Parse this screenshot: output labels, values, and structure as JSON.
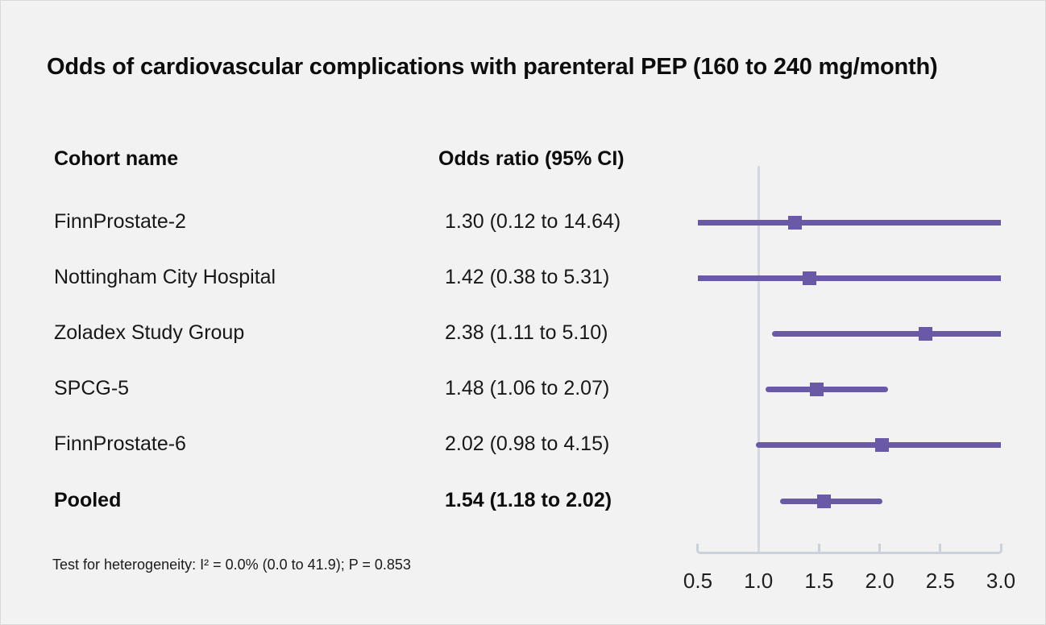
{
  "title": "Odds of cardiovascular complications with parenteral PEP (160 to 240 mg/month)",
  "table": {
    "col1_header": "Cohort name",
    "col2_header": "Odds ratio (95% CI)",
    "rows": [
      {
        "cohort": "FinnProstate-2",
        "odds_ratio": "1.30 (0.12 to 14.64)",
        "bold": false
      },
      {
        "cohort": "Nottingham City Hospital",
        "odds_ratio": "1.42 (0.38 to 5.31)",
        "bold": false
      },
      {
        "cohort": "Zoladex Study Group",
        "odds_ratio": "2.38 (1.11 to 5.10)",
        "bold": false
      },
      {
        "cohort": "SPCG-5",
        "odds_ratio": "1.48 (1.06 to 2.07)",
        "bold": false
      },
      {
        "cohort": "FinnProstate-6",
        "odds_ratio": "2.02 (0.98 to 4.15)",
        "bold": false
      },
      {
        "cohort": "Pooled",
        "odds_ratio": "1.54 (1.18 to 2.02)",
        "bold": true
      }
    ]
  },
  "footnote": "Test for heterogeneity: I² = 0.0% (0.0 to 41.9); P = 0.853",
  "chart_data": {
    "type": "scatter",
    "variant": "forest-plot",
    "series": [
      {
        "name": "FinnProstate-2",
        "or": 1.3,
        "ci_low": 0.12,
        "ci_high": 14.64,
        "pooled": false
      },
      {
        "name": "Nottingham City Hospital",
        "or": 1.42,
        "ci_low": 0.38,
        "ci_high": 5.31,
        "pooled": false
      },
      {
        "name": "Zoladex Study Group",
        "or": 2.38,
        "ci_low": 1.11,
        "ci_high": 5.1,
        "pooled": false
      },
      {
        "name": "SPCG-5",
        "or": 1.48,
        "ci_low": 1.06,
        "ci_high": 2.07,
        "pooled": false
      },
      {
        "name": "FinnProstate-6",
        "or": 2.02,
        "ci_low": 0.98,
        "ci_high": 4.15,
        "pooled": false
      },
      {
        "name": "Pooled",
        "or": 1.54,
        "ci_low": 1.18,
        "ci_high": 2.02,
        "pooled": true
      }
    ],
    "x_axis": {
      "range": [
        0.5,
        3.0
      ],
      "tick_values": [
        0.5,
        1.0,
        1.5,
        2.0,
        2.5,
        3.0
      ],
      "tick_labels": [
        "0.5",
        "1.0",
        "1.5",
        "2.0",
        "2.5",
        "3.0"
      ],
      "reference_line": 1.0
    },
    "marker_shape": "square",
    "grid": false,
    "legend": "none",
    "colors": {
      "series": "#6a59a6",
      "axis": "#ccd2db",
      "reference_line": "#d4d8e1",
      "background": "#f2f2f2",
      "text": "#0d0d0d"
    }
  }
}
